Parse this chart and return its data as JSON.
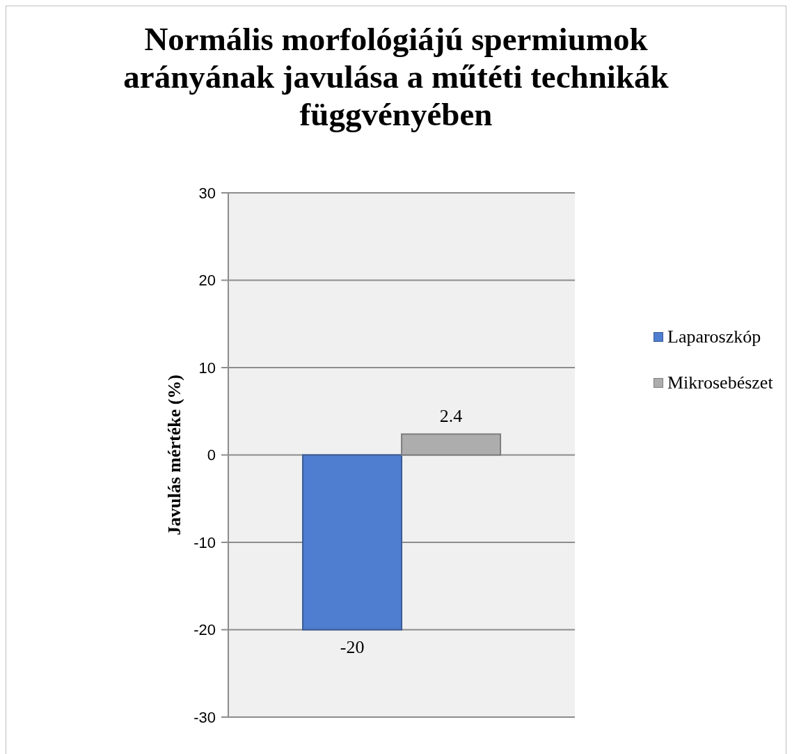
{
  "chart_data": {
    "type": "bar",
    "title": "Normális morfológiájú spermiumok arányának javulása a műtéti technikák függvényében",
    "ylabel": "Javulás mértéke (%)",
    "categories": [
      null
    ],
    "series": [
      {
        "name": "Laparoszkóp",
        "color": "#4f7dd0",
        "values": [
          -20
        ]
      },
      {
        "name": "Mikrosebészet",
        "color": "#adadad",
        "values": [
          2.4
        ]
      }
    ],
    "ylim": [
      -30,
      30
    ],
    "yticks": [
      -30,
      -20,
      -10,
      0,
      10,
      20,
      30
    ],
    "grid": "y",
    "legend": "right",
    "data_labels": true,
    "tick_labels": "y"
  }
}
